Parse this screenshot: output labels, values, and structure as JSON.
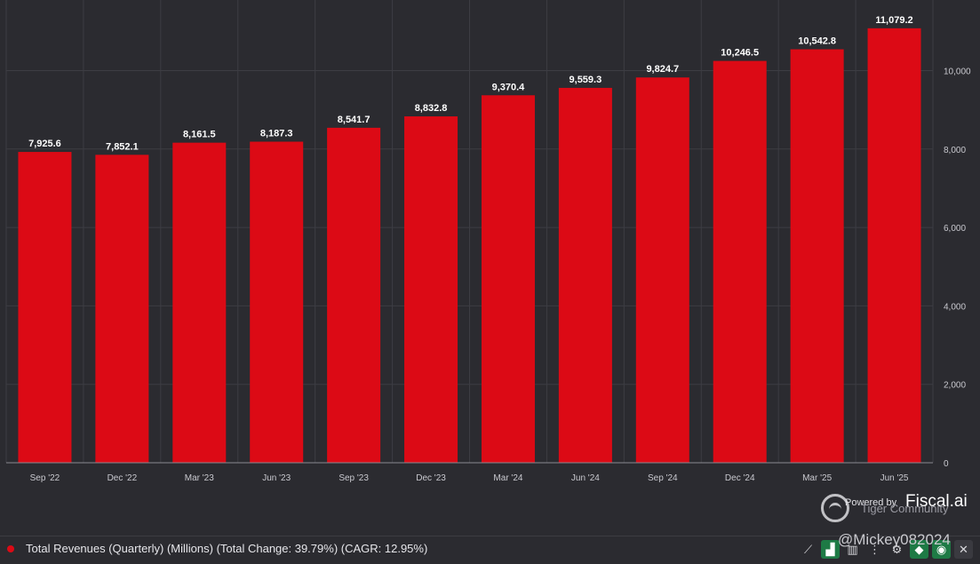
{
  "chart_data": {
    "type": "bar",
    "categories": [
      "Sep '22",
      "Dec '22",
      "Mar '23",
      "Jun '23",
      "Sep '23",
      "Dec '23",
      "Mar '24",
      "Jun '24",
      "Sep '24",
      "Dec '24",
      "Mar '25",
      "Jun '25"
    ],
    "values": [
      7925.6,
      7852.1,
      8161.5,
      8187.3,
      8541.7,
      8832.8,
      9370.4,
      9559.3,
      9824.7,
      10246.5,
      10542.8,
      11079.2
    ],
    "value_labels": [
      "7,925.6",
      "7,852.1",
      "8,161.5",
      "8,187.3",
      "8,541.7",
      "8,832.8",
      "9,370.4",
      "9,559.3",
      "9,824.7",
      "10,246.5",
      "10,542.8",
      "11,079.2"
    ],
    "y_ticks": [
      0,
      2000,
      4000,
      6000,
      8000,
      10000
    ],
    "y_tick_labels": [
      "0",
      "2,000",
      "4,000",
      "6,000",
      "8,000",
      "10,000"
    ],
    "ylim": [
      0,
      11800
    ],
    "y_axis_position": "right",
    "grid": true,
    "bar_color": "#dc0a15",
    "title": "",
    "xlabel": "",
    "ylabel": ""
  },
  "legend": {
    "label": "Total Revenues (Quarterly) (Millions) (Total Change: 39.79%) (CAGR: 12.95%)",
    "color": "#dc0a15",
    "position": "bottom-left"
  },
  "toolbar": {
    "items": [
      {
        "icon": "line-chart-icon",
        "glyph": "⟋",
        "style": "plain"
      },
      {
        "icon": "bar-chart-icon",
        "glyph": "▟",
        "style": "green"
      },
      {
        "icon": "stacked-bars-icon",
        "glyph": "▥",
        "style": "plain"
      },
      {
        "icon": "more-icon",
        "glyph": "⋮",
        "style": "plain"
      },
      {
        "icon": "gear-icon",
        "glyph": "⚙",
        "style": "plain"
      },
      {
        "icon": "tag-icon",
        "glyph": "◆",
        "style": "green"
      },
      {
        "icon": "eye-icon",
        "glyph": "◉",
        "style": "green"
      },
      {
        "icon": "close-icon",
        "glyph": "✕",
        "style": "dark"
      }
    ]
  },
  "watermark": {
    "powered_by": "Powered by",
    "brand": "Fiscal.ai",
    "community": "Tiger Community",
    "handle": "@Mickey082024"
  }
}
